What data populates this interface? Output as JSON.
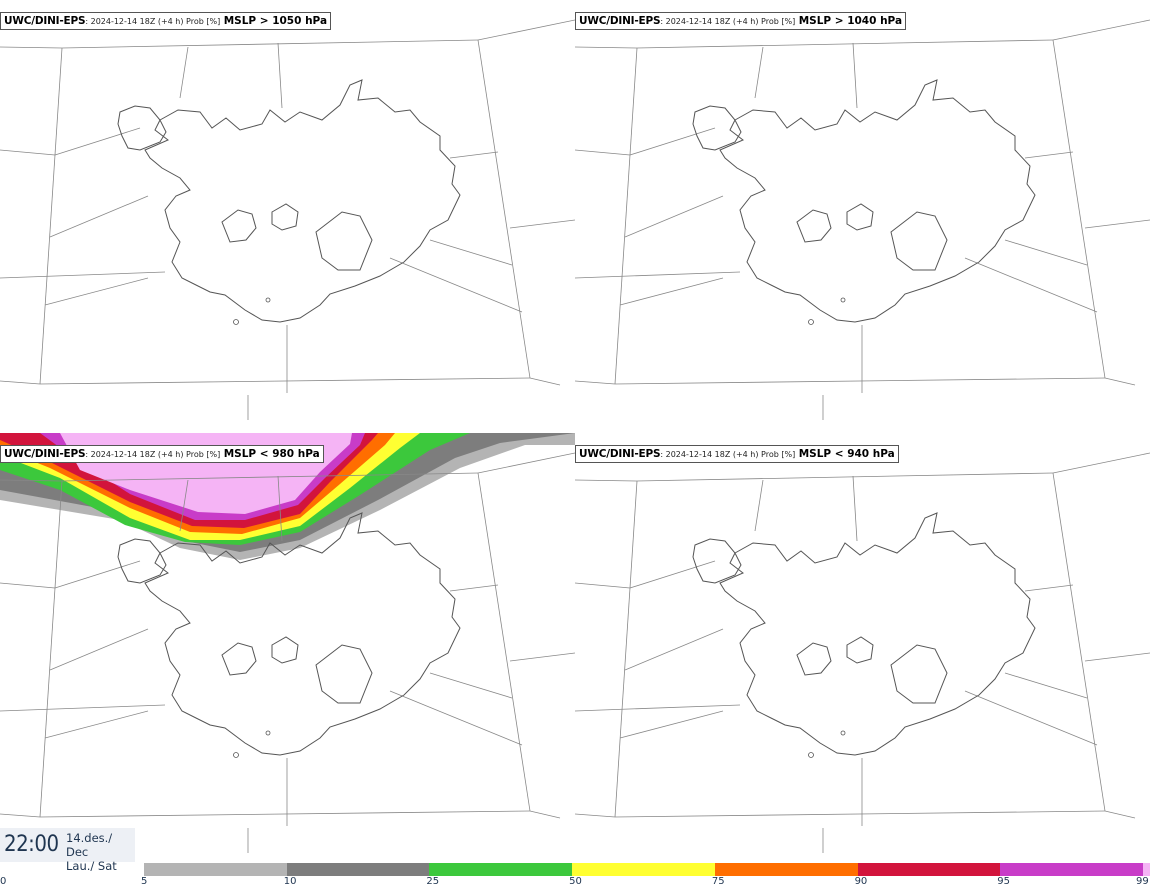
{
  "panels": [
    {
      "model": "UWC/DINI-EPS",
      "meta": ": 2024-12-14 18Z (+4 h) Prob [%]",
      "field": "MSLP > 1050 hPa"
    },
    {
      "model": "UWC/DINI-EPS",
      "meta": ": 2024-12-14 18Z (+4 h) Prob [%]",
      "field": "MSLP > 1040 hPa"
    },
    {
      "model": "UWC/DINI-EPS",
      "meta": ": 2024-12-14 18Z (+4 h) Prob [%]",
      "field": "MSLP < 980 hPa"
    },
    {
      "model": "UWC/DINI-EPS",
      "meta": ": 2024-12-14 18Z (+4 h) Prob [%]",
      "field": "MSLP < 940 hPa"
    }
  ],
  "valid_time": {
    "time": "22:00",
    "date_line1": "14.des./ Dec",
    "date_line2": "Lau./ Sat"
  },
  "legend": {
    "ticks": [
      "0",
      "5",
      "10",
      "25",
      "50",
      "75",
      "90",
      "95",
      "99"
    ],
    "bins": [
      {
        "from": 5,
        "to": 10,
        "color": "#b4b4b4"
      },
      {
        "from": 10,
        "to": 25,
        "color": "#7d7d7d"
      },
      {
        "from": 25,
        "to": 50,
        "color": "#3cc83c"
      },
      {
        "from": 50,
        "to": 75,
        "color": "#ffff32"
      },
      {
        "from": 75,
        "to": 90,
        "color": "#ff6e00"
      },
      {
        "from": 90,
        "to": 95,
        "color": "#d2143c"
      },
      {
        "from": 95,
        "to": 99,
        "color": "#c83cc8"
      },
      {
        "from": 99,
        "to": 100,
        "color": "#f5b4f5"
      }
    ]
  },
  "colors": {
    "coastline": "#555555",
    "grid": "#888888",
    "text": "#1f3550"
  }
}
